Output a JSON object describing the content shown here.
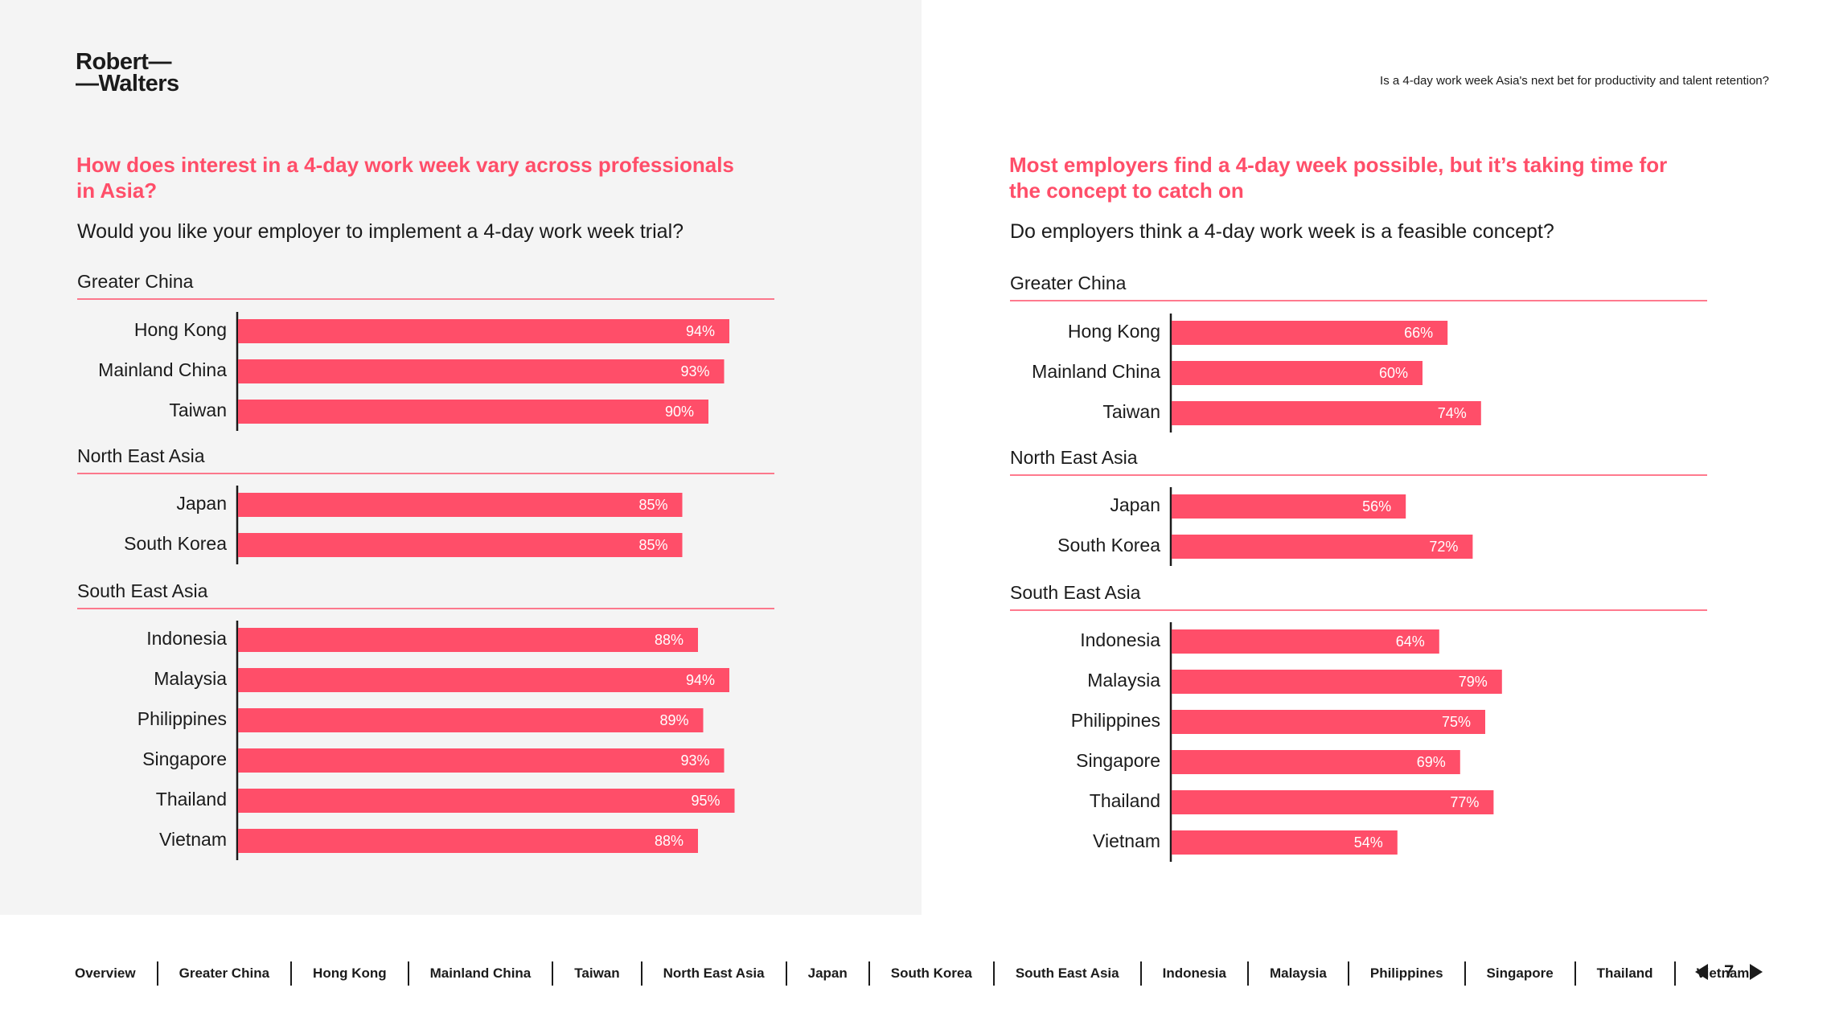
{
  "brand": {
    "logo_line1": "Robert—",
    "logo_line2": "—Walters"
  },
  "header": {
    "subtitle": "Is a 4-day work week Asia's next bet for productivity and talent retention?"
  },
  "colors": {
    "accent": "#ff4e69",
    "text": "#1b1b1b",
    "panel_bg": "#f4f4f4"
  },
  "left_panel": {
    "title": "How does interest in a 4-day work week vary across professionals in Asia?",
    "question": "Would you like your employer to implement a 4-day work week trial?"
  },
  "right_panel": {
    "title": "Most employers find a 4-day week possible, but it’s taking time for the concept to catch on",
    "question": "Do employers think a 4-day work week is a feasible concept?"
  },
  "chart_data": [
    {
      "type": "bar",
      "orientation": "horizontal",
      "unit": "%",
      "groups": [
        {
          "region": "Greater China",
          "categories": [
            "Hong Kong",
            "Mainland China",
            "Taiwan"
          ],
          "values": [
            94,
            93,
            90
          ]
        },
        {
          "region": "North East Asia",
          "categories": [
            "Japan",
            "South Korea"
          ],
          "values": [
            85,
            85
          ]
        },
        {
          "region": "South East Asia",
          "categories": [
            "Indonesia",
            "Malaysia",
            "Philippines",
            "Singapore",
            "Thailand",
            "Vietnam"
          ],
          "values": [
            88,
            94,
            89,
            93,
            95,
            88
          ]
        }
      ],
      "xlim": [
        0,
        100
      ]
    },
    {
      "type": "bar",
      "orientation": "horizontal",
      "unit": "%",
      "groups": [
        {
          "region": "Greater China",
          "categories": [
            "Hong Kong",
            "Mainland China",
            "Taiwan"
          ],
          "values": [
            66,
            60,
            74
          ]
        },
        {
          "region": "North East Asia",
          "categories": [
            "Japan",
            "South Korea"
          ],
          "values": [
            56,
            72
          ]
        },
        {
          "region": "South East Asia",
          "categories": [
            "Indonesia",
            "Malaysia",
            "Philippines",
            "Singapore",
            "Thailand",
            "Vietnam"
          ],
          "values": [
            64,
            79,
            75,
            69,
            77,
            54
          ]
        }
      ],
      "xlim": [
        0,
        100
      ]
    }
  ],
  "nav": {
    "items": [
      "Overview",
      "Greater China",
      "Hong Kong",
      "Mainland China",
      "Taiwan",
      "North East Asia",
      "Japan",
      "South Korea",
      "South East Asia",
      "Indonesia",
      "Malaysia",
      "Philippines",
      "Singapore",
      "Thailand",
      "Vietnam"
    ],
    "page": "7"
  }
}
